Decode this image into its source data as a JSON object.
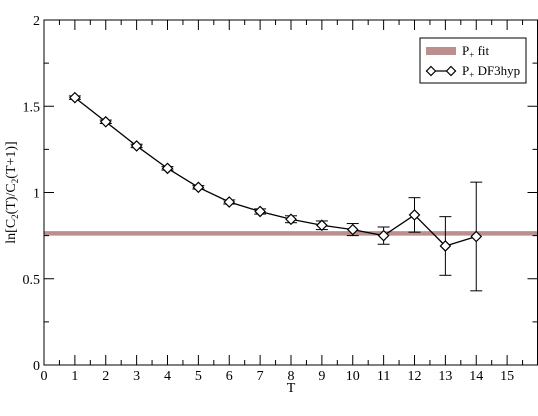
{
  "chart_data": {
    "type": "line",
    "xlabel": "T",
    "ylabel": {
      "prefix": "ln[C",
      "sub1": "2",
      "mid": "(T)/C",
      "sub2": "2",
      "suffix": "(T+1)]"
    },
    "xlim": [
      0,
      16
    ],
    "ylim": [
      0,
      2
    ],
    "xticks": [
      "0",
      "1",
      "2",
      "3",
      "4",
      "5",
      "6",
      "7",
      "8",
      "9",
      "10",
      "11",
      "12",
      "13",
      "14",
      "15"
    ],
    "yticks": [
      "0",
      "0.5",
      "1",
      "1.5",
      "2"
    ],
    "grid": false,
    "legend_position": "top-right",
    "fit_band": {
      "legend": {
        "main": "P",
        "sub": "+",
        "rest": " fit"
      },
      "center": 0.763,
      "halfwidth": 0.013,
      "color": "#bc8f8f"
    },
    "series": [
      {
        "legend": {
          "main": "P",
          "sub": "+",
          "rest": " DF3hyp"
        },
        "color": "#000000",
        "marker": "diamond",
        "x": [
          1,
          2,
          3,
          4,
          5,
          6,
          7,
          8,
          9,
          10,
          11,
          12,
          13,
          14
        ],
        "y": [
          1.55,
          1.41,
          1.27,
          1.14,
          1.03,
          0.945,
          0.89,
          0.845,
          0.81,
          0.785,
          0.75,
          0.87,
          0.69,
          0.745
        ],
        "err": [
          0.01,
          0.01,
          0.01,
          0.01,
          0.01,
          0.012,
          0.015,
          0.02,
          0.025,
          0.035,
          0.05,
          0.1,
          0.17,
          0.315
        ]
      }
    ]
  }
}
